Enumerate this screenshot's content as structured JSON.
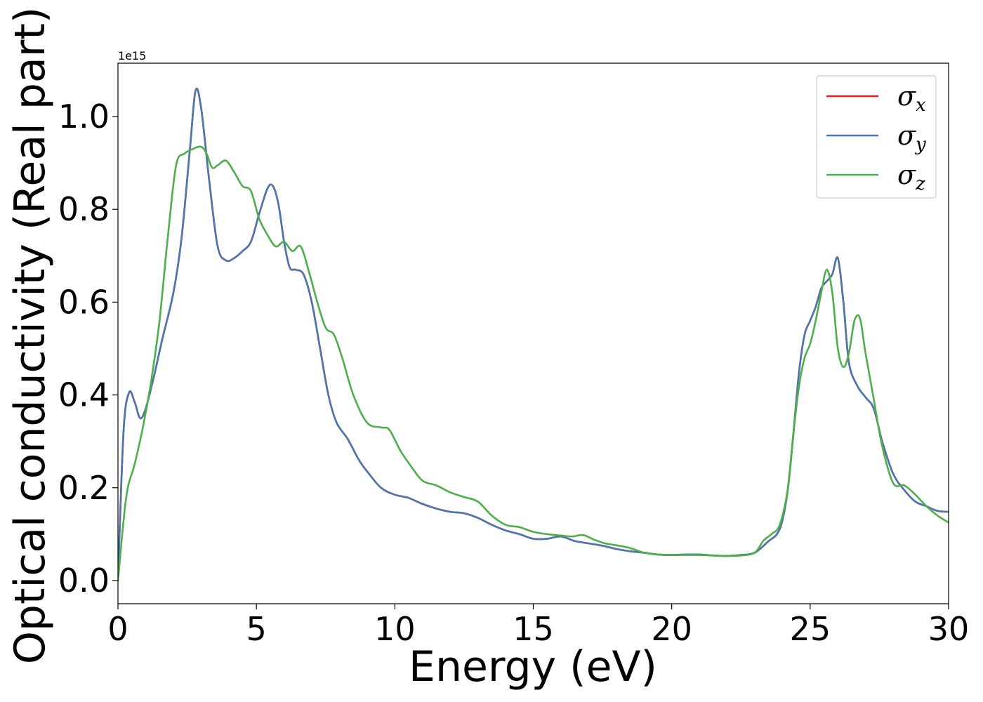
{
  "chart_data": {
    "type": "line",
    "title": "",
    "xlabel": "Energy (eV)",
    "ylabel": "Optical conductivity (Real part)",
    "y_offset_label": "1e15",
    "xlim": [
      0,
      30
    ],
    "ylim": [
      -0.05,
      1.115
    ],
    "xticks": [
      0,
      5,
      10,
      15,
      20,
      25,
      30
    ],
    "xtick_labels": [
      "0",
      "5",
      "10",
      "15",
      "20",
      "25",
      "30"
    ],
    "yticks": [
      0.0,
      0.2,
      0.4,
      0.6,
      0.8,
      1.0
    ],
    "ytick_labels": [
      "0.0",
      "0.2",
      "0.4",
      "0.6",
      "0.8",
      "1.0"
    ],
    "grid": false,
    "legend": {
      "position": "top-right"
    },
    "series": [
      {
        "name": "σx",
        "legend_symbol": "σ",
        "legend_sub": "x",
        "color": "#e41a1c",
        "x": [
          0,
          0.2,
          0.4,
          0.6,
          0.8,
          1.0,
          1.3,
          1.6,
          2.0,
          2.3,
          2.6,
          2.8,
          3.0,
          3.3,
          3.6,
          3.9,
          4.2,
          4.5,
          4.8,
          5.1,
          5.4,
          5.6,
          5.8,
          6.0,
          6.2,
          6.4,
          6.7,
          7.0,
          7.3,
          7.6,
          7.9,
          8.3,
          8.7,
          9.0,
          9.5,
          10.0,
          10.5,
          11.0,
          11.5,
          12.0,
          12.5,
          13.0,
          13.5,
          14.0,
          14.5,
          15.0,
          15.5,
          16.0,
          16.5,
          17.0,
          17.5,
          18.0,
          18.5,
          19.0,
          19.5,
          20.0,
          20.5,
          21.0,
          21.5,
          22.0,
          22.5,
          23.0,
          23.5,
          23.8,
          24.0,
          24.2,
          24.4,
          24.6,
          24.8,
          25.0,
          25.2,
          25.4,
          25.6,
          25.8,
          26.0,
          26.2,
          26.4,
          26.7,
          27.0,
          27.3,
          27.6,
          28.0,
          28.4,
          28.8,
          29.2,
          29.6,
          30.0
        ],
        "values": [
          0.0,
          0.32,
          0.405,
          0.385,
          0.35,
          0.37,
          0.44,
          0.52,
          0.62,
          0.74,
          0.93,
          1.055,
          1.02,
          0.86,
          0.72,
          0.69,
          0.695,
          0.71,
          0.73,
          0.79,
          0.845,
          0.85,
          0.81,
          0.73,
          0.675,
          0.67,
          0.66,
          0.6,
          0.5,
          0.4,
          0.34,
          0.305,
          0.26,
          0.235,
          0.2,
          0.185,
          0.178,
          0.165,
          0.155,
          0.148,
          0.145,
          0.135,
          0.12,
          0.108,
          0.1,
          0.09,
          0.09,
          0.095,
          0.085,
          0.08,
          0.075,
          0.068,
          0.063,
          0.06,
          0.056,
          0.055,
          0.056,
          0.056,
          0.054,
          0.053,
          0.055,
          0.06,
          0.085,
          0.1,
          0.13,
          0.2,
          0.32,
          0.45,
          0.53,
          0.56,
          0.59,
          0.63,
          0.645,
          0.66,
          0.695,
          0.6,
          0.47,
          0.42,
          0.395,
          0.37,
          0.3,
          0.23,
          0.195,
          0.17,
          0.16,
          0.15,
          0.148
        ]
      },
      {
        "name": "σy",
        "legend_symbol": "σ",
        "legend_sub": "y",
        "color": "#4a77b0",
        "x": [
          0,
          0.2,
          0.4,
          0.6,
          0.8,
          1.0,
          1.3,
          1.6,
          2.0,
          2.3,
          2.6,
          2.8,
          3.0,
          3.3,
          3.6,
          3.9,
          4.2,
          4.5,
          4.8,
          5.1,
          5.4,
          5.6,
          5.8,
          6.0,
          6.2,
          6.4,
          6.7,
          7.0,
          7.3,
          7.6,
          7.9,
          8.3,
          8.7,
          9.0,
          9.5,
          10.0,
          10.5,
          11.0,
          11.5,
          12.0,
          12.5,
          13.0,
          13.5,
          14.0,
          14.5,
          15.0,
          15.5,
          16.0,
          16.5,
          17.0,
          17.5,
          18.0,
          18.5,
          19.0,
          19.5,
          20.0,
          20.5,
          21.0,
          21.5,
          22.0,
          22.5,
          23.0,
          23.5,
          23.8,
          24.0,
          24.2,
          24.4,
          24.6,
          24.8,
          25.0,
          25.2,
          25.4,
          25.6,
          25.8,
          26.0,
          26.2,
          26.4,
          26.7,
          27.0,
          27.3,
          27.6,
          28.0,
          28.4,
          28.8,
          29.2,
          29.6,
          30.0
        ],
        "values": [
          0.0,
          0.32,
          0.405,
          0.385,
          0.35,
          0.37,
          0.44,
          0.52,
          0.62,
          0.74,
          0.93,
          1.055,
          1.02,
          0.86,
          0.72,
          0.69,
          0.695,
          0.71,
          0.73,
          0.79,
          0.845,
          0.85,
          0.81,
          0.73,
          0.675,
          0.67,
          0.66,
          0.6,
          0.5,
          0.4,
          0.34,
          0.305,
          0.26,
          0.235,
          0.2,
          0.185,
          0.178,
          0.165,
          0.155,
          0.148,
          0.145,
          0.135,
          0.12,
          0.108,
          0.1,
          0.09,
          0.09,
          0.095,
          0.085,
          0.08,
          0.075,
          0.068,
          0.063,
          0.06,
          0.056,
          0.055,
          0.056,
          0.056,
          0.054,
          0.053,
          0.055,
          0.06,
          0.085,
          0.1,
          0.13,
          0.2,
          0.32,
          0.45,
          0.53,
          0.56,
          0.59,
          0.63,
          0.645,
          0.66,
          0.695,
          0.6,
          0.47,
          0.42,
          0.395,
          0.37,
          0.3,
          0.23,
          0.195,
          0.17,
          0.16,
          0.15,
          0.148
        ]
      },
      {
        "name": "σz",
        "legend_symbol": "σ",
        "legend_sub": "z",
        "color": "#4daf4a",
        "x": [
          0,
          0.3,
          0.6,
          0.9,
          1.2,
          1.5,
          1.8,
          2.1,
          2.4,
          2.7,
          3.0,
          3.2,
          3.4,
          3.6,
          3.9,
          4.2,
          4.5,
          4.8,
          5.1,
          5.4,
          5.7,
          6.0,
          6.3,
          6.6,
          6.9,
          7.2,
          7.5,
          7.8,
          8.1,
          8.5,
          9.0,
          9.5,
          9.8,
          10.2,
          10.6,
          11.0,
          11.5,
          12.0,
          12.5,
          13.0,
          13.5,
          14.0,
          14.5,
          15.0,
          15.5,
          16.0,
          16.4,
          16.8,
          17.2,
          17.6,
          18.0,
          18.5,
          19.0,
          19.5,
          20.0,
          20.5,
          21.0,
          21.5,
          22.0,
          22.5,
          23.0,
          23.3,
          23.6,
          23.9,
          24.2,
          24.4,
          24.6,
          24.8,
          25.0,
          25.2,
          25.4,
          25.6,
          25.8,
          26.0,
          26.2,
          26.4,
          26.6,
          26.8,
          27.0,
          27.3,
          27.6,
          28.0,
          28.4,
          28.8,
          29.2,
          29.6,
          30.0
        ],
        "values": [
          0.0,
          0.18,
          0.25,
          0.33,
          0.43,
          0.56,
          0.74,
          0.895,
          0.92,
          0.93,
          0.935,
          0.92,
          0.89,
          0.895,
          0.905,
          0.88,
          0.85,
          0.84,
          0.78,
          0.745,
          0.72,
          0.73,
          0.71,
          0.72,
          0.665,
          0.6,
          0.545,
          0.53,
          0.48,
          0.4,
          0.34,
          0.33,
          0.325,
          0.28,
          0.245,
          0.215,
          0.205,
          0.19,
          0.18,
          0.17,
          0.14,
          0.12,
          0.115,
          0.105,
          0.1,
          0.097,
          0.095,
          0.098,
          0.088,
          0.08,
          0.076,
          0.07,
          0.06,
          0.056,
          0.055,
          0.055,
          0.055,
          0.054,
          0.053,
          0.054,
          0.06,
          0.085,
          0.1,
          0.12,
          0.2,
          0.32,
          0.42,
          0.48,
          0.51,
          0.56,
          0.62,
          0.67,
          0.62,
          0.5,
          0.46,
          0.49,
          0.56,
          0.565,
          0.49,
          0.39,
          0.29,
          0.21,
          0.205,
          0.185,
          0.16,
          0.14,
          0.125
        ]
      }
    ]
  }
}
